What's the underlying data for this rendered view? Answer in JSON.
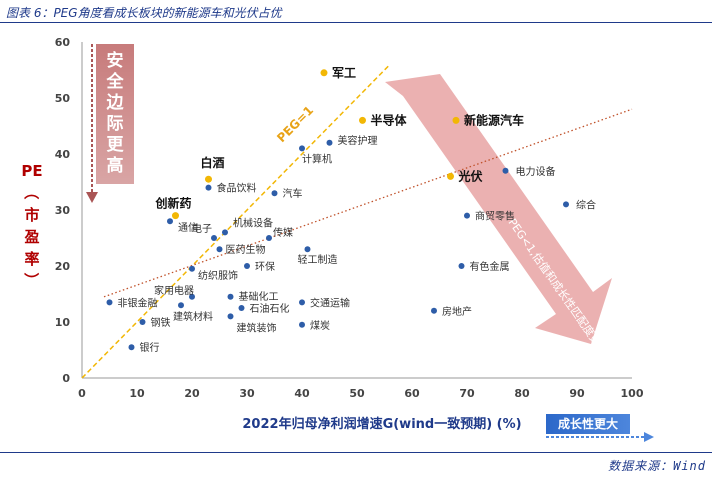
{
  "figure": {
    "title": "图表 6：PEG角度看成长板块的新能源车和光伏占优",
    "source": "数据来源：Wind"
  },
  "annotations": {
    "left_box": "安全边际更高",
    "growth_box": "成长性更大",
    "diag_arrow": "PEG<1,估值和成长性匹配度更高",
    "peg_line": "PEG=1"
  },
  "colors": {
    "highlight": "#f2b705",
    "point": "#2e5da8",
    "peg_line": "#f2b705",
    "trend_line": "#c0522b",
    "arrow": "#e7a3a3",
    "title": "#1f3a8a"
  },
  "chart_data": {
    "type": "scatter",
    "xlabel": "2022年归母净利润增速G(wind一致预期) (%)",
    "ylabel": "PE（市盈率）",
    "xlim": [
      0,
      100
    ],
    "ylim": [
      0,
      60
    ],
    "xticks": [
      0,
      10,
      20,
      30,
      40,
      50,
      60,
      70,
      80,
      90,
      100
    ],
    "yticks": [
      0,
      10,
      20,
      30,
      40,
      50,
      60
    ],
    "grid": false,
    "highlighted": [
      {
        "label": "军工",
        "x": 44,
        "y": 54.5
      },
      {
        "label": "半导体",
        "x": 51,
        "y": 46
      },
      {
        "label": "新能源汽车",
        "x": 68,
        "y": 46
      },
      {
        "label": "白酒",
        "x": 23,
        "y": 35.5
      },
      {
        "label": "创新药",
        "x": 17,
        "y": 29
      },
      {
        "label": "光伏",
        "x": 67,
        "y": 36
      }
    ],
    "points": [
      {
        "label": "美容护理",
        "x": 45,
        "y": 42
      },
      {
        "label": "计算机",
        "x": 40,
        "y": 41
      },
      {
        "label": "食品饮料",
        "x": 23,
        "y": 34
      },
      {
        "label": "汽车",
        "x": 35,
        "y": 33
      },
      {
        "label": "通信",
        "x": 16,
        "y": 28
      },
      {
        "label": "电子",
        "x": 24,
        "y": 25
      },
      {
        "label": "机械设备",
        "x": 26,
        "y": 26
      },
      {
        "label": "传媒",
        "x": 34,
        "y": 25
      },
      {
        "label": "医药生物",
        "x": 25,
        "y": 23
      },
      {
        "label": "轻工制造",
        "x": 41,
        "y": 23
      },
      {
        "label": "纺织服饰",
        "x": 20,
        "y": 19.5
      },
      {
        "label": "环保",
        "x": 30,
        "y": 20
      },
      {
        "label": "家用电器",
        "x": 20,
        "y": 14.5
      },
      {
        "label": "非银金融",
        "x": 5,
        "y": 13.5
      },
      {
        "label": "基础化工",
        "x": 27,
        "y": 14.5
      },
      {
        "label": "交通运输",
        "x": 40,
        "y": 13.5
      },
      {
        "label": "石油石化",
        "x": 29,
        "y": 12.5
      },
      {
        "label": "钢铁",
        "x": 11,
        "y": 10
      },
      {
        "label": "建筑材料",
        "x": 18,
        "y": 13
      },
      {
        "label": "建筑装饰",
        "x": 27,
        "y": 11
      },
      {
        "label": "煤炭",
        "x": 40,
        "y": 9.5
      },
      {
        "label": "银行",
        "x": 9,
        "y": 5.5
      },
      {
        "label": "电力设备",
        "x": 77,
        "y": 37
      },
      {
        "label": "综合",
        "x": 88,
        "y": 31
      },
      {
        "label": "商贸零售",
        "x": 70,
        "y": 29
      },
      {
        "label": "有色金属",
        "x": 69,
        "y": 20
      },
      {
        "label": "房地产",
        "x": 64,
        "y": 12
      }
    ],
    "lines": [
      {
        "name": "PEG=1",
        "style": "dashed",
        "from": [
          0,
          0
        ],
        "to": [
          56,
          56
        ]
      },
      {
        "name": "trend",
        "style": "dotted",
        "from": [
          4,
          14.5
        ],
        "to": [
          100,
          48
        ]
      }
    ]
  }
}
